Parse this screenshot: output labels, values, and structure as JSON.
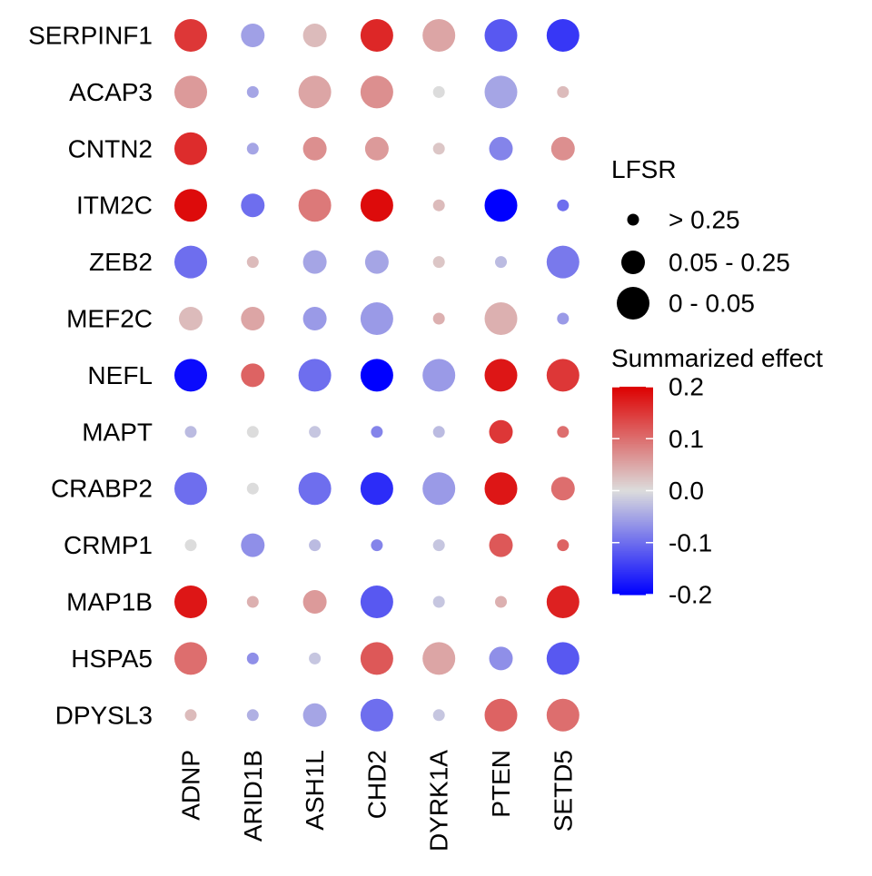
{
  "chart_data": {
    "type": "dotplot",
    "genes": [
      "SERPINF1",
      "ACAP3",
      "CNTN2",
      "ITM2C",
      "ZEB2",
      "MEF2C",
      "NEFL",
      "MAPT",
      "CRABP2",
      "CRMP1",
      "MAP1B",
      "HSPA5",
      "DPYSL3"
    ],
    "perturbations": [
      "ADNP",
      "ARID1B",
      "ASH1L",
      "CHD2",
      "DYRK1A",
      "PTEN",
      "SETD5"
    ],
    "size_levels": [
      "> 0.25",
      "0.05 - 0.25",
      "0 - 0.05"
    ],
    "effect": [
      [
        0.15,
        -0.055,
        0.03,
        0.165,
        0.05,
        -0.12,
        -0.15
      ],
      [
        0.06,
        -0.05,
        0.05,
        0.07,
        0.0,
        -0.05,
        0.03
      ],
      [
        0.16,
        -0.05,
        0.07,
        0.06,
        0.02,
        -0.08,
        0.07
      ],
      [
        0.19,
        -0.1,
        0.09,
        0.19,
        0.03,
        -0.2,
        -0.1
      ],
      [
        -0.1,
        0.03,
        -0.05,
        -0.05,
        0.02,
        -0.03,
        -0.09
      ],
      [
        0.03,
        0.05,
        -0.06,
        -0.06,
        0.04,
        0.04,
        -0.06
      ],
      [
        -0.19,
        0.11,
        -0.1,
        -0.2,
        -0.06,
        0.18,
        0.15
      ],
      [
        -0.03,
        0.0,
        -0.02,
        -0.08,
        -0.03,
        0.15,
        0.1
      ],
      [
        -0.1,
        0.0,
        -0.1,
        -0.16,
        -0.06,
        0.18,
        0.1
      ],
      [
        0.0,
        -0.07,
        -0.03,
        -0.08,
        -0.02,
        0.12,
        0.11
      ],
      [
        0.18,
        0.04,
        0.06,
        -0.12,
        -0.02,
        0.04,
        0.17
      ],
      [
        0.1,
        -0.07,
        -0.02,
        0.12,
        0.05,
        -0.07,
        -0.12
      ],
      [
        0.03,
        -0.04,
        -0.05,
        -0.1,
        -0.02,
        0.11,
        0.1
      ]
    ],
    "lfsr_level": [
      [
        2,
        1,
        1,
        2,
        2,
        2,
        2
      ],
      [
        2,
        0,
        2,
        2,
        0,
        2,
        0
      ],
      [
        2,
        0,
        1,
        1,
        0,
        1,
        1
      ],
      [
        2,
        1,
        2,
        2,
        0,
        2,
        0
      ],
      [
        2,
        0,
        1,
        1,
        0,
        0,
        2
      ],
      [
        1,
        1,
        1,
        2,
        0,
        2,
        0
      ],
      [
        2,
        1,
        2,
        2,
        2,
        2,
        2
      ],
      [
        0,
        0,
        0,
        0,
        0,
        1,
        0
      ],
      [
        2,
        0,
        2,
        2,
        2,
        2,
        1
      ],
      [
        0,
        1,
        0,
        0,
        0,
        1,
        0
      ],
      [
        2,
        0,
        1,
        2,
        0,
        0,
        2
      ],
      [
        2,
        0,
        0,
        2,
        2,
        1,
        2
      ],
      [
        0,
        0,
        1,
        2,
        0,
        2,
        2
      ]
    ],
    "size_legend_title": "LFSR",
    "color_legend_title": "Summarized effect",
    "color_scale": {
      "min": -0.2,
      "max": 0.2,
      "low": "#0000FF",
      "mid": "#DCDCDC",
      "high": "#DD0000",
      "ticks": [
        {
          "value": 0.2,
          "label": "0.2"
        },
        {
          "value": 0.1,
          "label": "0.1"
        },
        {
          "value": 0.0,
          "label": "0.0"
        },
        {
          "value": -0.1,
          "label": "-0.1"
        },
        {
          "value": -0.2,
          "label": "-0.2"
        }
      ]
    }
  }
}
